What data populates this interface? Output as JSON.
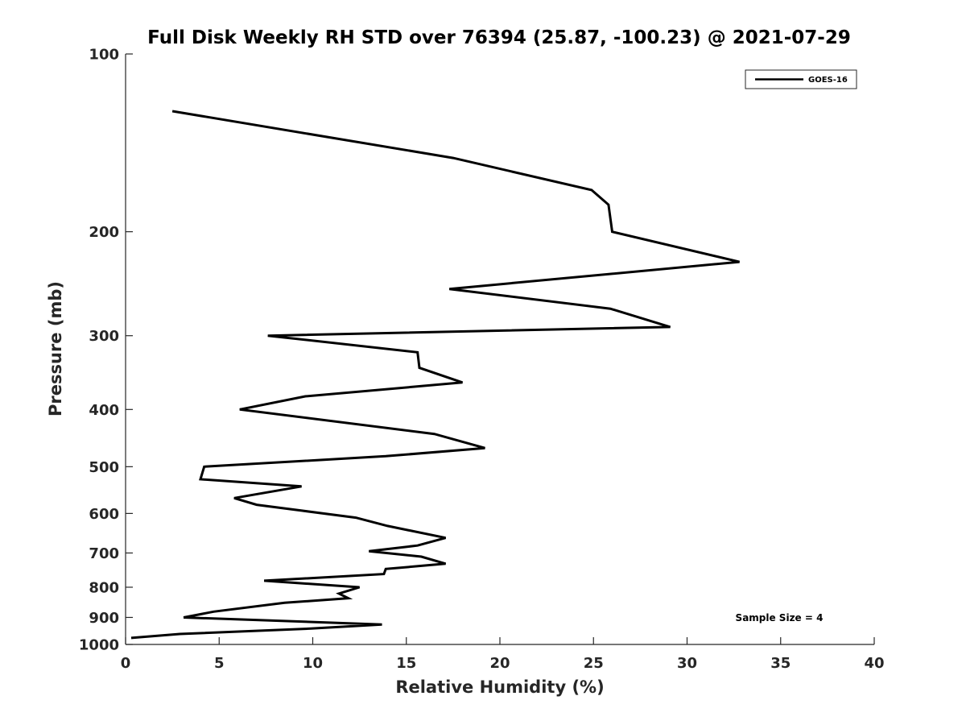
{
  "chart_data": {
    "type": "line",
    "title": "Full Disk Weekly RH STD over 76394 (25.87, -100.23) @ 2021-07-29",
    "xlabel": "Relative Humidity (%)",
    "ylabel": "Pressure (mb)",
    "xlim": [
      0,
      40
    ],
    "ylim": [
      100,
      1000
    ],
    "y_scale": "log",
    "y_reversed": true,
    "x_ticks": [
      0,
      5,
      10,
      15,
      20,
      25,
      30,
      35,
      40
    ],
    "y_ticks": [
      100,
      200,
      300,
      400,
      500,
      600,
      700,
      800,
      900,
      1000
    ],
    "grid": false,
    "legend_position": "top-right",
    "annotation": "Sample Size = 4",
    "series": [
      {
        "name": "GOES-16",
        "color": "#000000",
        "points": [
          [
            2.5,
            125
          ],
          [
            17.5,
            150
          ],
          [
            24.9,
            170
          ],
          [
            25.8,
            180
          ],
          [
            26.0,
            200
          ],
          [
            32.8,
            225
          ],
          [
            17.3,
            250
          ],
          [
            25.9,
            270
          ],
          [
            29.1,
            290
          ],
          [
            7.6,
            300
          ],
          [
            15.6,
            320
          ],
          [
            15.7,
            340
          ],
          [
            18.0,
            360
          ],
          [
            9.6,
            380
          ],
          [
            6.1,
            400
          ],
          [
            16.5,
            440
          ],
          [
            19.2,
            465
          ],
          [
            13.9,
            480
          ],
          [
            4.2,
            500
          ],
          [
            4.0,
            525
          ],
          [
            9.4,
            540
          ],
          [
            5.8,
            565
          ],
          [
            7.0,
            580
          ],
          [
            12.3,
            610
          ],
          [
            14.0,
            630
          ],
          [
            17.1,
            660
          ],
          [
            15.6,
            680
          ],
          [
            13.0,
            695
          ],
          [
            15.8,
            710
          ],
          [
            17.1,
            730
          ],
          [
            13.9,
            745
          ],
          [
            13.8,
            760
          ],
          [
            7.4,
            780
          ],
          [
            12.5,
            800
          ],
          [
            11.4,
            820
          ],
          [
            11.9,
            835
          ],
          [
            8.5,
            850
          ],
          [
            4.7,
            880
          ],
          [
            3.1,
            900
          ],
          [
            13.7,
            925
          ],
          [
            9.9,
            940
          ],
          [
            2.9,
            960
          ],
          [
            0.3,
            975
          ]
        ]
      }
    ]
  }
}
